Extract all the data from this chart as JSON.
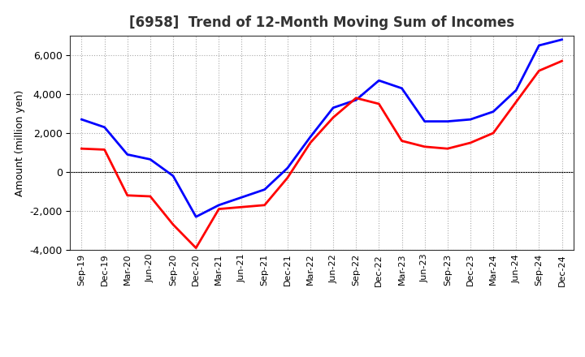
{
  "title": "[6958]  Trend of 12-Month Moving Sum of Incomes",
  "ylabel": "Amount (million yen)",
  "x_labels": [
    "Sep-19",
    "Dec-19",
    "Mar-20",
    "Jun-20",
    "Sep-20",
    "Dec-20",
    "Mar-21",
    "Jun-21",
    "Sep-21",
    "Dec-21",
    "Mar-22",
    "Jun-22",
    "Sep-22",
    "Dec-22",
    "Mar-23",
    "Jun-23",
    "Sep-23",
    "Dec-23",
    "Mar-24",
    "Jun-24",
    "Sep-24",
    "Dec-24"
  ],
  "ordinary_income": [
    2700,
    2300,
    900,
    650,
    -200,
    -2300,
    -1700,
    -1300,
    -900,
    200,
    1800,
    3300,
    3700,
    4700,
    4300,
    2600,
    2600,
    2700,
    3100,
    4200,
    6500,
    6800
  ],
  "net_income": [
    1200,
    1150,
    -1200,
    -1250,
    -2700,
    -3900,
    -1900,
    -1800,
    -1700,
    -300,
    1500,
    2800,
    3800,
    3500,
    1600,
    1300,
    1200,
    1500,
    2000,
    3600,
    5200,
    5700
  ],
  "ordinary_income_color": "#0000ff",
  "net_income_color": "#ff0000",
  "background_color": "#ffffff",
  "grid_color": "#aaaaaa",
  "ylim": [
    -4000,
    7000
  ],
  "yticks": [
    -4000,
    -2000,
    0,
    2000,
    4000,
    6000
  ],
  "title_fontsize": 12,
  "title_color": "#333333",
  "axis_fontsize": 9,
  "legend_fontsize": 10,
  "line_width": 2.0
}
